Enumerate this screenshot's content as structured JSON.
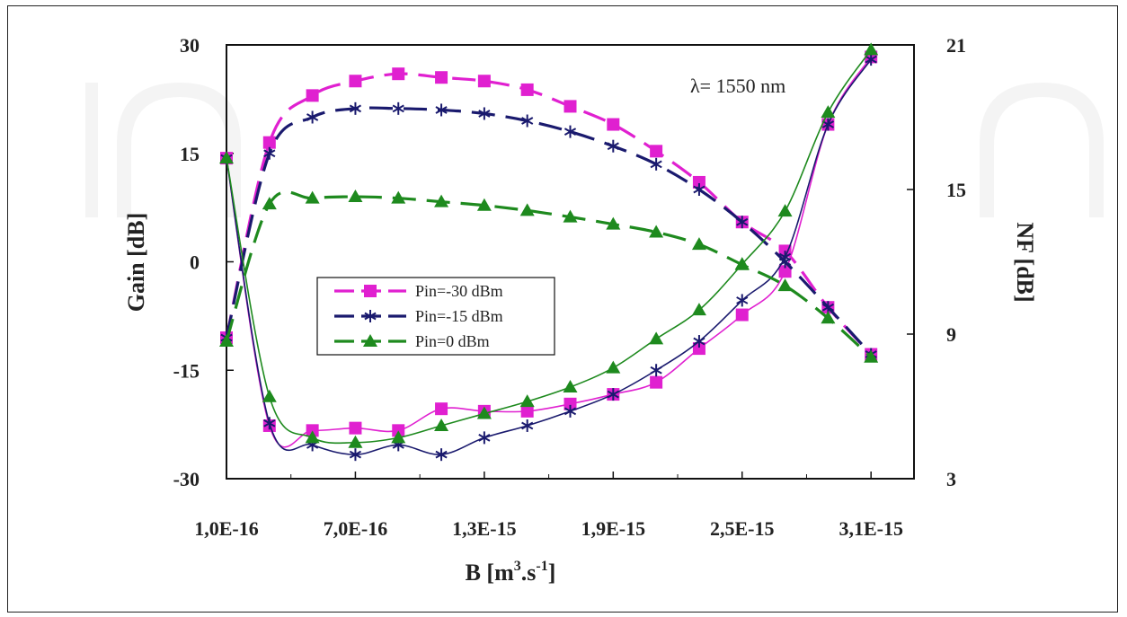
{
  "chart_data": {
    "type": "line",
    "xlabel": "B [m",
    "xlabel_sup": "3",
    "xlabel_mid": ".s",
    "xlabel_sup2": "-1",
    "xlabel_end": "]",
    "ylabel_left": "Gain [dB]",
    "ylabel_right": "NF [dB]",
    "annotation": "λ= 1550 nm",
    "xlim": [
      1e-16,
      3.3e-15
    ],
    "ylim_left": [
      -30,
      30
    ],
    "ylim_right": [
      3,
      21
    ],
    "x_ticks": [
      1e-16,
      7e-16,
      1.3e-15,
      1.9e-15,
      2.5e-15,
      3.1e-15
    ],
    "x_tick_labels": [
      "1,0E-16",
      "7,0E-16",
      "1,3E-15",
      "1,9E-15",
      "2,5E-15",
      "3,1E-15"
    ],
    "y_left_ticks": [
      -30,
      -15,
      0,
      15,
      30
    ],
    "y_left_tick_labels": [
      "-30",
      "-15",
      "0",
      "15",
      "30"
    ],
    "y_right_ticks": [
      3,
      9,
      15,
      21
    ],
    "y_right_tick_labels": [
      "3",
      "9",
      "15",
      "21"
    ],
    "legend_position": "center-left",
    "grid": false,
    "x": [
      1e-16,
      3e-16,
      5e-16,
      7e-16,
      9e-16,
      1.1e-15,
      1.3e-15,
      1.5e-15,
      1.7e-15,
      1.9e-15,
      2.1e-15,
      2.3e-15,
      2.5e-15,
      2.7e-15,
      2.9e-15,
      3.1e-15
    ],
    "series": [
      {
        "name": "Pin=-30 dBm",
        "color": "#e020d0",
        "marker": "square",
        "gain": [
          -10.5,
          16.5,
          23,
          25,
          26,
          25.5,
          25,
          23.8,
          21.5,
          19,
          15.3,
          11,
          5.5,
          1.5,
          -6.3,
          -12.8
        ],
        "nf": [
          16.3,
          5.2,
          5.0,
          5.1,
          5.0,
          5.9,
          5.8,
          5.8,
          6.1,
          6.5,
          7.0,
          8.4,
          9.8,
          11.6,
          17.7,
          20.5
        ]
      },
      {
        "name": "Pin=-15 dBm",
        "color": "#1a1a6e",
        "marker": "star",
        "gain": [
          -10.5,
          15,
          20,
          21.2,
          21.2,
          21,
          20.5,
          19.5,
          18,
          16,
          13.5,
          10,
          5.5,
          0,
          -6.3,
          -12.8
        ],
        "nf": [
          16.3,
          5.3,
          4.4,
          4.0,
          4.4,
          4.0,
          4.7,
          5.2,
          5.8,
          6.5,
          7.5,
          8.7,
          10.4,
          12.2,
          17.7,
          20.4
        ]
      },
      {
        "name": "Pin=0 dBm",
        "color": "#1e8a1e",
        "marker": "triangle",
        "gain": [
          -11,
          8,
          8.8,
          9,
          8.8,
          8.3,
          7.8,
          7.1,
          6.2,
          5.2,
          4.1,
          2.4,
          -0.4,
          -3.3,
          -7.8,
          -13.2
        ],
        "nf": [
          16.3,
          6.4,
          4.7,
          4.5,
          4.7,
          5.2,
          5.7,
          6.2,
          6.8,
          7.6,
          8.8,
          10.0,
          11.9,
          14.1,
          18.2,
          20.8
        ]
      }
    ]
  }
}
